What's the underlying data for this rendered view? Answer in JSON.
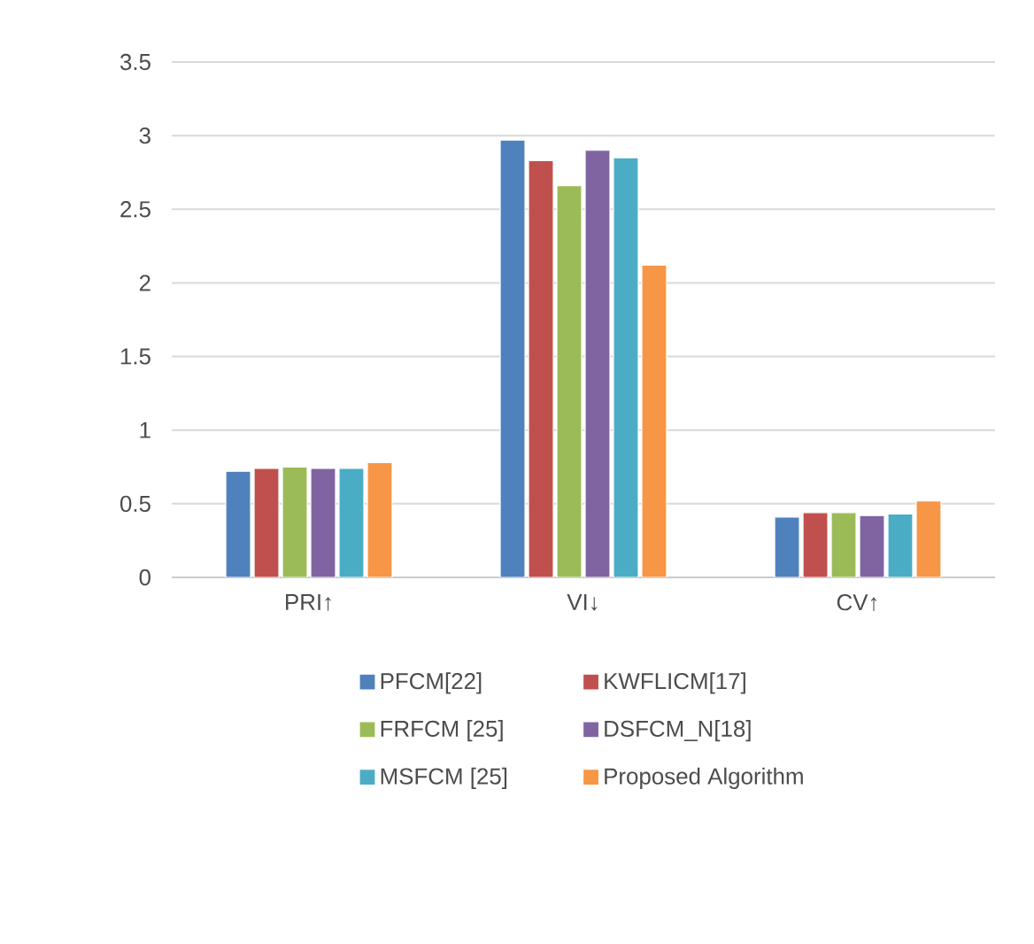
{
  "chart_data": {
    "type": "bar",
    "categories": [
      "PRI↑",
      "VI↓",
      "CV↑"
    ],
    "series": [
      {
        "name": "PFCM[22]",
        "color": "#4f81bd",
        "values": [
          0.72,
          2.97,
          0.41
        ]
      },
      {
        "name": "KWFLICM[17]",
        "color": "#c0504d",
        "values": [
          0.74,
          2.83,
          0.44
        ]
      },
      {
        "name": "FRFCM [25]",
        "color": "#9bbb59",
        "values": [
          0.75,
          2.66,
          0.44
        ]
      },
      {
        "name": "DSFCM_N[18]",
        "color": "#8064a2",
        "values": [
          0.74,
          2.9,
          0.42
        ]
      },
      {
        "name": "MSFCM [25]",
        "color": "#4bacc6",
        "values": [
          0.74,
          2.85,
          0.43
        ]
      },
      {
        "name": "Proposed Algorithm",
        "color": "#f79646",
        "values": [
          0.78,
          2.12,
          0.52
        ]
      }
    ],
    "ylim": [
      0,
      3.5
    ],
    "yticks": [
      0,
      0.5,
      1,
      1.5,
      2,
      2.5,
      3,
      3.5
    ],
    "grid": "y",
    "legend": "bottom"
  }
}
